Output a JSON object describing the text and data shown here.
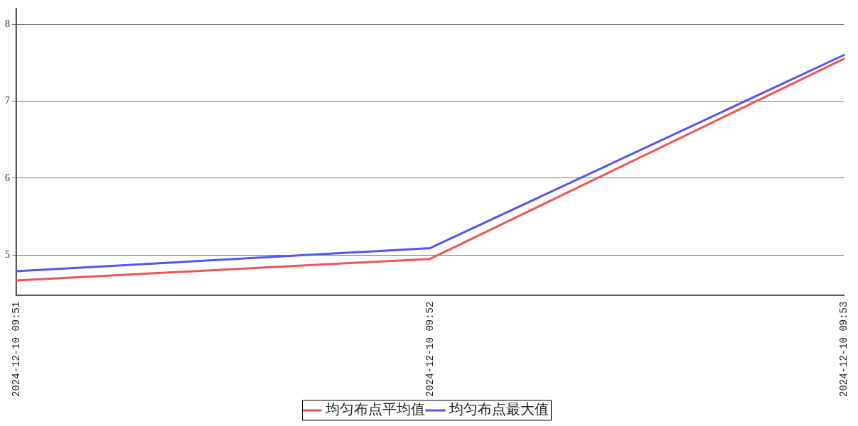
{
  "chart_data": {
    "type": "line",
    "categories": [
      "2024-12-10 09:51",
      "2024-12-10 09:52",
      "2024-12-10 09:53"
    ],
    "series": [
      {
        "name": "均匀布点平均值",
        "color": "#f05454",
        "values": [
          4.67,
          4.95,
          7.55
        ]
      },
      {
        "name": "均匀布点最大值",
        "color": "#5454f0",
        "values": [
          4.79,
          5.09,
          7.6
        ]
      }
    ],
    "ylim": [
      4.48,
      8.21
    ],
    "yticks": [
      5,
      6,
      7,
      8
    ],
    "grid": "y",
    "legend": "bottom",
    "marker": "none",
    "line_style": "solid"
  }
}
